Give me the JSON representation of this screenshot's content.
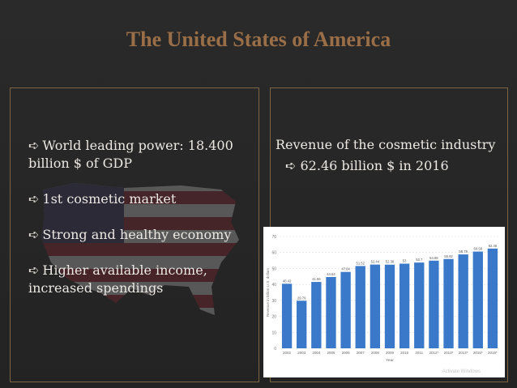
{
  "slide": {
    "title": "The United States of America"
  },
  "left_panel": {
    "bullets": [
      {
        "arrow": "➪",
        "text": "World leading power: 18.400 billion $ of GDP"
      },
      {
        "arrow": "➪",
        "text": "1st cosmetic market"
      },
      {
        "arrow": "➪",
        "text": "Strong and healthy economy"
      },
      {
        "arrow": "➪",
        "text": "Higher available income, increased spendings"
      }
    ]
  },
  "right_panel": {
    "heading": "Revenue of the cosmetic industry",
    "arrow": "➪",
    "value": "62.46 billion $ in 2016"
  },
  "watermark": "Activate Windows",
  "colors": {
    "title": "#9a6e47",
    "border": "#7d6543",
    "bar": "#3a79c9"
  },
  "chart_data": {
    "type": "bar",
    "categories": [
      "2002",
      "2003",
      "2004",
      "2005",
      "2006",
      "2007",
      "2008",
      "2009",
      "2010",
      "2011",
      "2012*",
      "2013*",
      "2014*",
      "2015*",
      "2016*"
    ],
    "values": [
      40.42,
      29.79,
      41.56,
      44.64,
      47.84,
      51.52,
      52.44,
      52.38,
      53.0,
      53.7,
      54.89,
      55.92,
      58.79,
      60.58,
      62.46
    ],
    "value_labels": [
      "40.42",
      "29.79",
      "41.56",
      "44.64",
      "47.84",
      "51.52",
      "52.44",
      "52.38",
      "53",
      "53.7",
      "54.89",
      "55.92",
      "58.79",
      "60.58",
      "62.46"
    ],
    "ylim": [
      0,
      70
    ],
    "yticks": [
      0,
      10,
      20,
      30,
      40,
      50,
      60,
      70
    ],
    "xlabel": "Year",
    "ylabel": "Revenue in billion U.S. dollars",
    "grid": true
  }
}
